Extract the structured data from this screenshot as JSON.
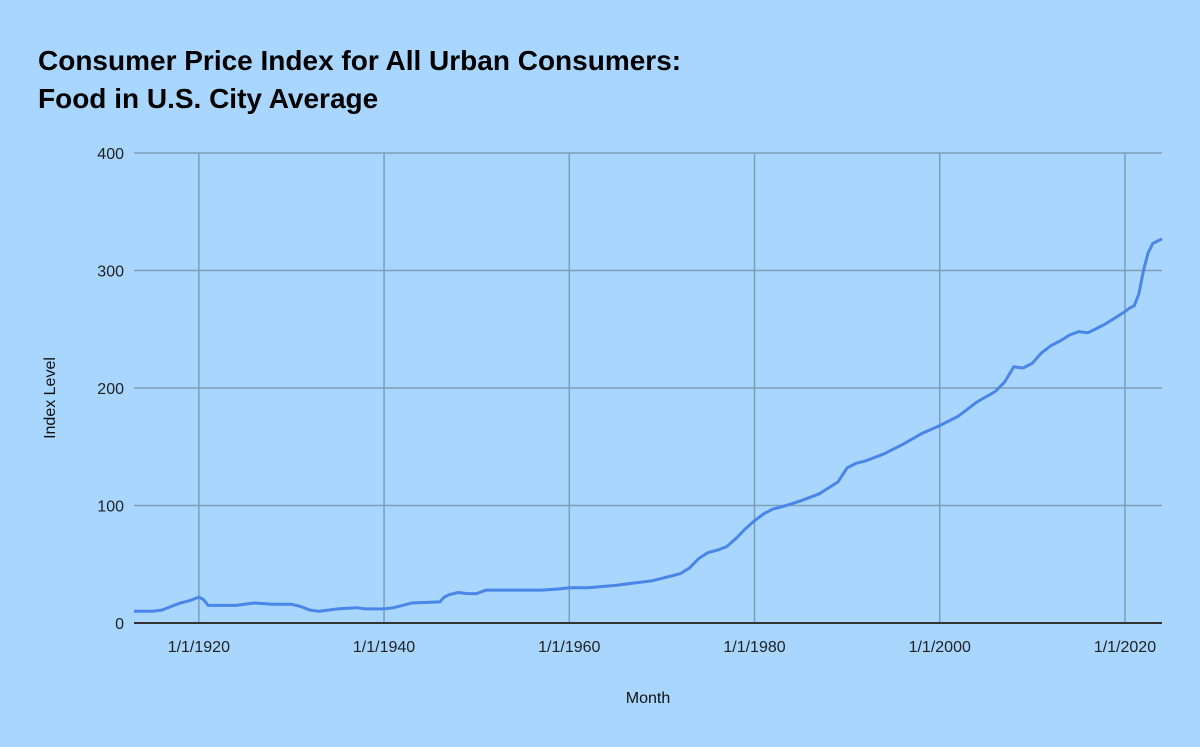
{
  "chart_data": {
    "type": "line",
    "title_line1": "Consumer Price Index for All Urban Consumers:",
    "title_line2": "Food in U.S. City Average",
    "xlabel": "Month",
    "ylabel": "Index Level",
    "xlim": [
      1913,
      2024
    ],
    "ylim": [
      0,
      400
    ],
    "grid": true,
    "line_color": "#4a86e8",
    "background": "#a8d6fe",
    "y_ticks": [
      0,
      100,
      200,
      300,
      400
    ],
    "y_tick_labels": [
      "0",
      "100",
      "200",
      "300",
      "400"
    ],
    "x_ticks": [
      1920,
      1940,
      1960,
      1980,
      2000,
      2020
    ],
    "x_tick_labels": [
      "1/1/1920",
      "1/1/1940",
      "1/1/1960",
      "1/1/1980",
      "1/1/2000",
      "1/1/2020"
    ],
    "series": [
      {
        "name": "Index Level",
        "x": [
          1913,
          1915,
          1916,
          1917,
          1918,
          1919,
          1920,
          1920.5,
          1921,
          1922,
          1924,
          1926,
          1928,
          1930,
          1931,
          1932,
          1933,
          1935,
          1937,
          1938,
          1940,
          1941,
          1942,
          1943,
          1946,
          1946.5,
          1947,
          1948,
          1949,
          1950,
          1951,
          1953,
          1955,
          1957,
          1959,
          1960,
          1962,
          1965,
          1967,
          1969,
          1971,
          1972,
          1973,
          1974,
          1975,
          1976,
          1977,
          1978,
          1979,
          1980,
          1981,
          1982,
          1983,
          1985,
          1987,
          1988,
          1989,
          1990,
          1991,
          1992,
          1994,
          1996,
          1998,
          2000,
          2002,
          2004,
          2006,
          2007,
          2008,
          2009,
          2010,
          2011,
          2012,
          2013,
          2014,
          2015,
          2016,
          2017,
          2018,
          2019,
          2020,
          2020.5,
          2021,
          2021.5,
          2022,
          2022.5,
          2023,
          2024
        ],
        "values": [
          10,
          10,
          11,
          14,
          17,
          19,
          22,
          20,
          15,
          15,
          15,
          17,
          16,
          16,
          14,
          11,
          10,
          12,
          13,
          12,
          12,
          13,
          15,
          17,
          18,
          22,
          24,
          26,
          25,
          25,
          28,
          28,
          28,
          28,
          29,
          30,
          30,
          32,
          34,
          36,
          40,
          42,
          47,
          55,
          60,
          62,
          65,
          72,
          80,
          87,
          93,
          97,
          99,
          104,
          110,
          115,
          120,
          132,
          136,
          138,
          144,
          152,
          161,
          168,
          176,
          188,
          197,
          205,
          218,
          217,
          221,
          230,
          236,
          240,
          245,
          248,
          247,
          251,
          255,
          260,
          265,
          268,
          270,
          280,
          300,
          315,
          323,
          327
        ]
      }
    ]
  }
}
